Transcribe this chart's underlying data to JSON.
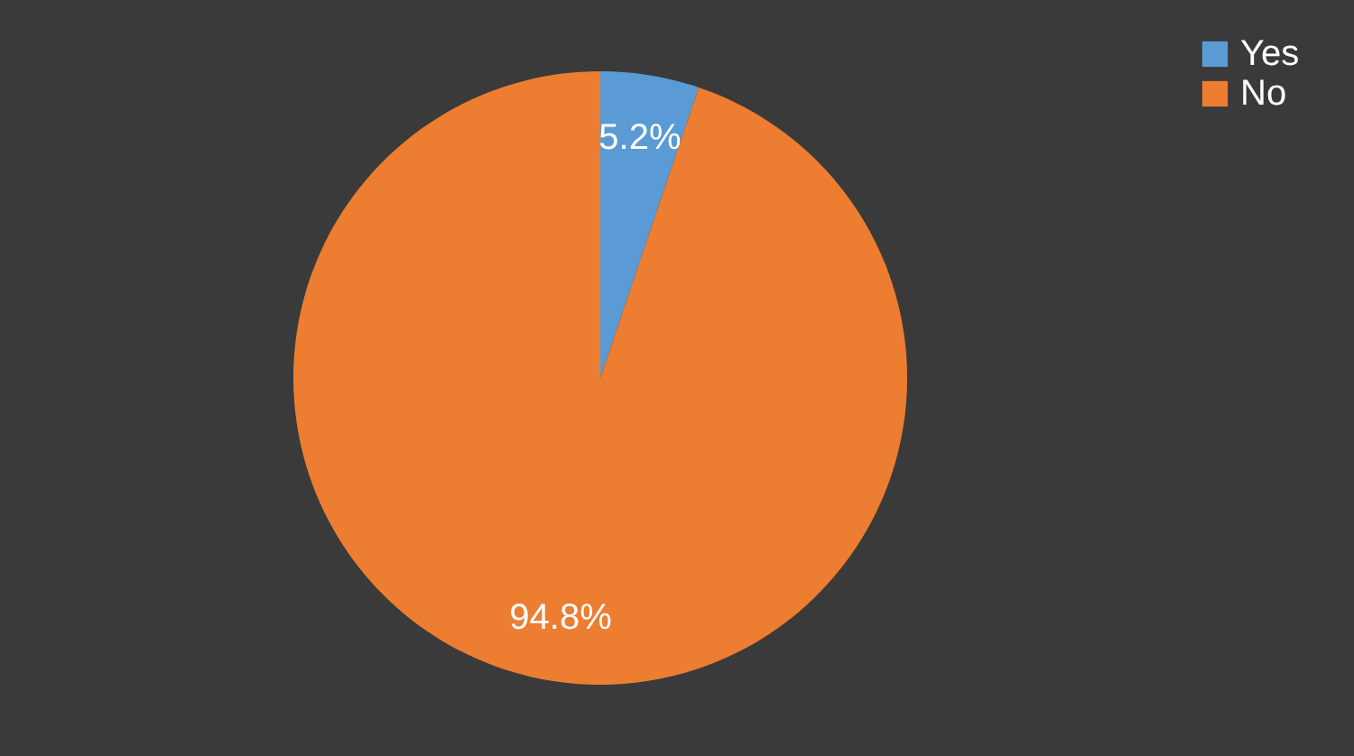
{
  "chart_data": {
    "type": "pie",
    "categories": [
      "Yes",
      "No"
    ],
    "values": [
      5.2,
      94.8
    ],
    "colors": [
      "#5b9bd5",
      "#ed7d31"
    ],
    "value_labels": [
      "5.2%",
      "94.8%"
    ],
    "legend": "right"
  }
}
